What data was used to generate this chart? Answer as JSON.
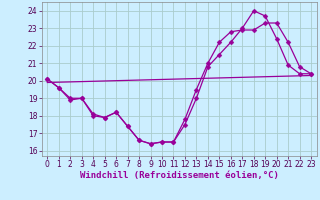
{
  "xlabel": "Windchill (Refroidissement éolien,°C)",
  "background_color": "#cceeff",
  "grid_color": "#aacccc",
  "line_color": "#990099",
  "ylim": [
    15.7,
    24.5
  ],
  "xlim": [
    -0.5,
    23.5
  ],
  "yticks": [
    16,
    17,
    18,
    19,
    20,
    21,
    22,
    23,
    24
  ],
  "xticks": [
    0,
    1,
    2,
    3,
    4,
    5,
    6,
    7,
    8,
    9,
    10,
    11,
    12,
    13,
    14,
    15,
    16,
    17,
    18,
    19,
    20,
    21,
    22,
    23
  ],
  "line1_y": [
    20.1,
    19.6,
    19.0,
    19.0,
    18.1,
    17.9,
    18.2,
    17.4,
    16.6,
    16.4,
    16.5,
    16.5,
    17.8,
    19.5,
    21.0,
    22.2,
    22.8,
    22.9,
    22.9,
    23.3,
    23.3,
    22.2,
    20.8,
    20.4
  ],
  "line2_y": [
    20.1,
    19.6,
    18.9,
    19.0,
    18.0,
    17.9,
    18.2,
    17.4,
    16.6,
    16.4,
    16.5,
    16.5,
    17.5,
    19.0,
    20.8,
    21.5,
    22.2,
    23.0,
    24.0,
    23.7,
    22.4,
    20.9,
    20.4,
    20.4
  ],
  "line3_x": [
    0,
    23
  ],
  "line3_y": [
    19.9,
    20.3
  ],
  "marker": "D",
  "markersize": 2.5,
  "linewidth": 0.9,
  "label_fontsize": 6.5,
  "tick_fontsize": 5.5
}
